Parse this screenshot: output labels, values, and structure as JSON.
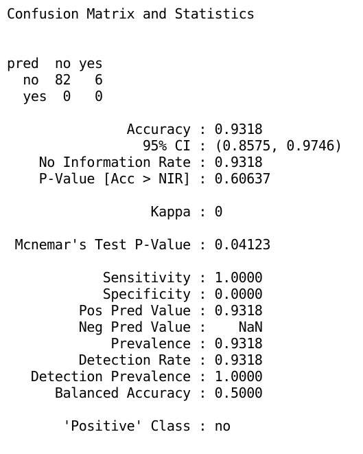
{
  "console": {
    "lines": [
      "Confusion Matrix and Statistics",
      "",
      "",
      "pred  no yes",
      "  no  82   6",
      "  yes  0   0",
      "",
      "               Accuracy : 0.9318",
      "                 95% CI : (0.8575, 0.9746)",
      "    No Information Rate : 0.9318",
      "    P-Value [Acc > NIR] : 0.60637",
      "",
      "                  Kappa : 0",
      "",
      " Mcnemar's Test P-Value : 0.04123",
      "",
      "            Sensitivity : 1.0000",
      "            Specificity : 0.0000",
      "         Pos Pred Value : 0.9318",
      "         Neg Pred Value :    NaN",
      "             Prevalence : 0.9318",
      "         Detection Rate : 0.9318",
      "   Detection Prevalence : 1.0000",
      "      Balanced Accuracy : 0.5000",
      "",
      "       'Positive' Class : no"
    ]
  }
}
